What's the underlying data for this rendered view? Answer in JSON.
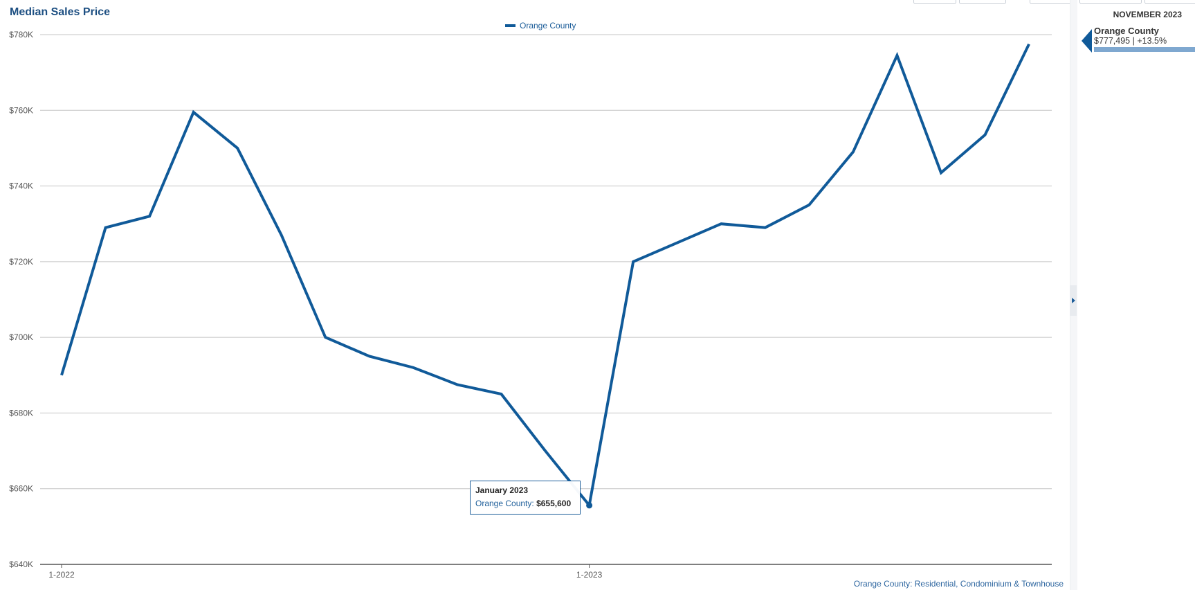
{
  "chart_title": "Median Sales Price",
  "legend": {
    "series_name": "Orange County"
  },
  "footnote": "Orange County: Residential, Condominium & Townhouse",
  "colors": {
    "series": "#105a99",
    "title": "#1d4f82",
    "grid": "#c4c4c4",
    "axis": "#555555"
  },
  "tooltip": {
    "title": "January 2023",
    "series": "Orange County:",
    "value": "$655,600"
  },
  "side_panel": {
    "date": "NOVEMBER 2023",
    "series_name": "Orange County",
    "value_line": "$777,495 | +13.5%"
  },
  "chart_data": {
    "type": "line",
    "title": "Median Sales Price",
    "xlabel": "",
    "ylabel": "",
    "ylim": [
      640000,
      780000
    ],
    "y_ticks": [
      640000,
      660000,
      680000,
      700000,
      720000,
      740000,
      760000,
      780000
    ],
    "y_tick_labels": [
      "$640K",
      "$660K",
      "$680K",
      "$700K",
      "$720K",
      "$740K",
      "$760K",
      "$780K"
    ],
    "x": [
      "1-2022",
      "2-2022",
      "3-2022",
      "4-2022",
      "5-2022",
      "6-2022",
      "7-2022",
      "8-2022",
      "9-2022",
      "10-2022",
      "11-2022",
      "12-2022",
      "1-2023",
      "2-2023",
      "3-2023",
      "4-2023",
      "5-2023",
      "6-2023",
      "7-2023",
      "8-2023",
      "9-2023",
      "10-2023",
      "11-2023"
    ],
    "x_tick_labels": [
      "1-2022",
      "1-2023"
    ],
    "grid": true,
    "legend_position": "top-center",
    "series": [
      {
        "name": "Orange County",
        "values": [
          690000,
          729000,
          732000,
          759500,
          750000,
          727000,
          700000,
          695000,
          692000,
          687500,
          685000,
          670000,
          655600,
          720000,
          725000,
          730000,
          729000,
          735000,
          749000,
          774500,
          743500,
          753500,
          777495
        ]
      }
    ]
  }
}
